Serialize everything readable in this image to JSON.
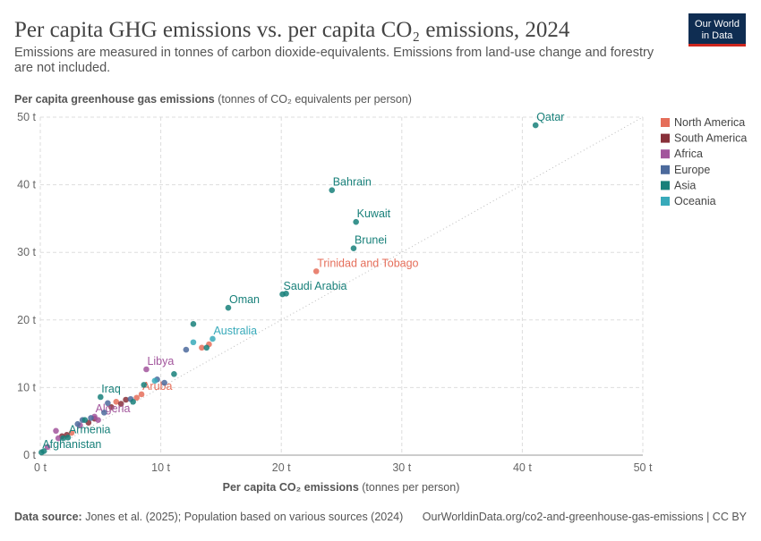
{
  "chart_data": {
    "type": "scatter",
    "title": "Per capita GHG emissions vs. per capita CO₂ emissions, 2024",
    "subtitle": "Emissions are measured in tonnes of carbon dioxide-equivalents. Emissions from land-use change and forestry are not included.",
    "y_label_bold": "Per capita greenhouse gas emissions",
    "y_label_unit": "(tonnes of CO₂ equivalents per person)",
    "x_label_bold": "Per capita CO₂ emissions",
    "x_label_unit": "(tonnes per person)",
    "xlim": [
      0,
      50
    ],
    "ylim": [
      0,
      50
    ],
    "xticks": [
      {
        "value": 0,
        "label": "0 t"
      },
      {
        "value": 10,
        "label": "10 t"
      },
      {
        "value": 20,
        "label": "20 t"
      },
      {
        "value": 30,
        "label": "30 t"
      },
      {
        "value": 40,
        "label": "40 t"
      },
      {
        "value": 50,
        "label": "50 t"
      }
    ],
    "yticks": [
      {
        "value": 0,
        "label": "0 t"
      },
      {
        "value": 10,
        "label": "10 t"
      },
      {
        "value": 20,
        "label": "20 t"
      },
      {
        "value": 30,
        "label": "30 t"
      },
      {
        "value": 40,
        "label": "40 t"
      },
      {
        "value": 50,
        "label": "50 t"
      }
    ],
    "grid": true,
    "series": [
      {
        "name": "North America",
        "color": "#e56e5a",
        "x": [
          22.9,
          8.4,
          13.4,
          14.0,
          6.3,
          2.6,
          8.0
        ],
        "y": [
          27.2,
          9.0,
          15.9,
          16.4,
          7.9,
          3.3,
          8.5
        ],
        "labels": [
          "Trinidad and Tobago",
          "Aruba",
          null,
          null,
          null,
          null,
          null
        ]
      },
      {
        "name": "South America",
        "color": "#883039",
        "x": [
          7.1,
          4.5,
          2.2,
          5.9,
          6.7,
          1.8,
          4.0
        ],
        "y": [
          8.2,
          5.4,
          3.0,
          7.1,
          7.6,
          2.8,
          4.8
        ]
      },
      {
        "name": "Africa",
        "color": "#a2559c",
        "x": [
          8.8,
          4.5,
          1.3,
          1.5,
          4.8,
          0.6,
          3.3
        ],
        "y": [
          12.7,
          5.7,
          3.6,
          2.5,
          5.2,
          1.2,
          4.4
        ],
        "labels": [
          "Libya",
          "Algeria",
          null,
          null,
          null,
          null,
          null
        ]
      },
      {
        "name": "Europe",
        "color": "#4c6a9c",
        "x": [
          12.1,
          10.3,
          9.7,
          5.6,
          3.5,
          3.1,
          5.3,
          7.5,
          4.2
        ],
        "y": [
          15.6,
          10.7,
          11.2,
          7.7,
          5.2,
          4.6,
          6.3,
          8.3,
          5.5
        ]
      },
      {
        "name": "Asia",
        "color": "#18807a",
        "x": [
          41.1,
          24.2,
          26.2,
          26.0,
          20.1,
          15.6,
          5.0,
          2.3,
          0.1,
          20.4,
          12.7,
          11.1,
          13.8,
          8.6,
          7.7,
          3.7,
          1.9,
          0.3
        ],
        "y": [
          48.8,
          39.2,
          34.5,
          30.6,
          23.8,
          21.8,
          8.6,
          2.6,
          0.4,
          23.9,
          19.4,
          12.0,
          15.9,
          10.4,
          7.9,
          5.2,
          2.5,
          0.6
        ],
        "labels": [
          "Qatar",
          "Bahrain",
          "Kuwait",
          "Brunei",
          "Saudi Arabia",
          "Oman",
          "Iraq",
          "Armenia",
          "Afghanistan",
          null,
          null,
          null,
          null,
          null,
          null,
          null,
          null,
          null
        ]
      },
      {
        "name": "Oceania",
        "color": "#38aaba",
        "x": [
          14.3,
          12.7,
          9.5
        ],
        "y": [
          17.2,
          16.7,
          11.0
        ],
        "labels": [
          "Australia",
          null,
          null
        ]
      }
    ]
  },
  "footer": {
    "source_bold": "Data source:",
    "source": "Jones et al. (2025); Population based on various sources (2024)",
    "url": "OurWorldinData.org/co2-and-greenhouse-gas-emissions | CC BY"
  },
  "logo": {
    "line1": "Our World",
    "line2": "in Data"
  }
}
